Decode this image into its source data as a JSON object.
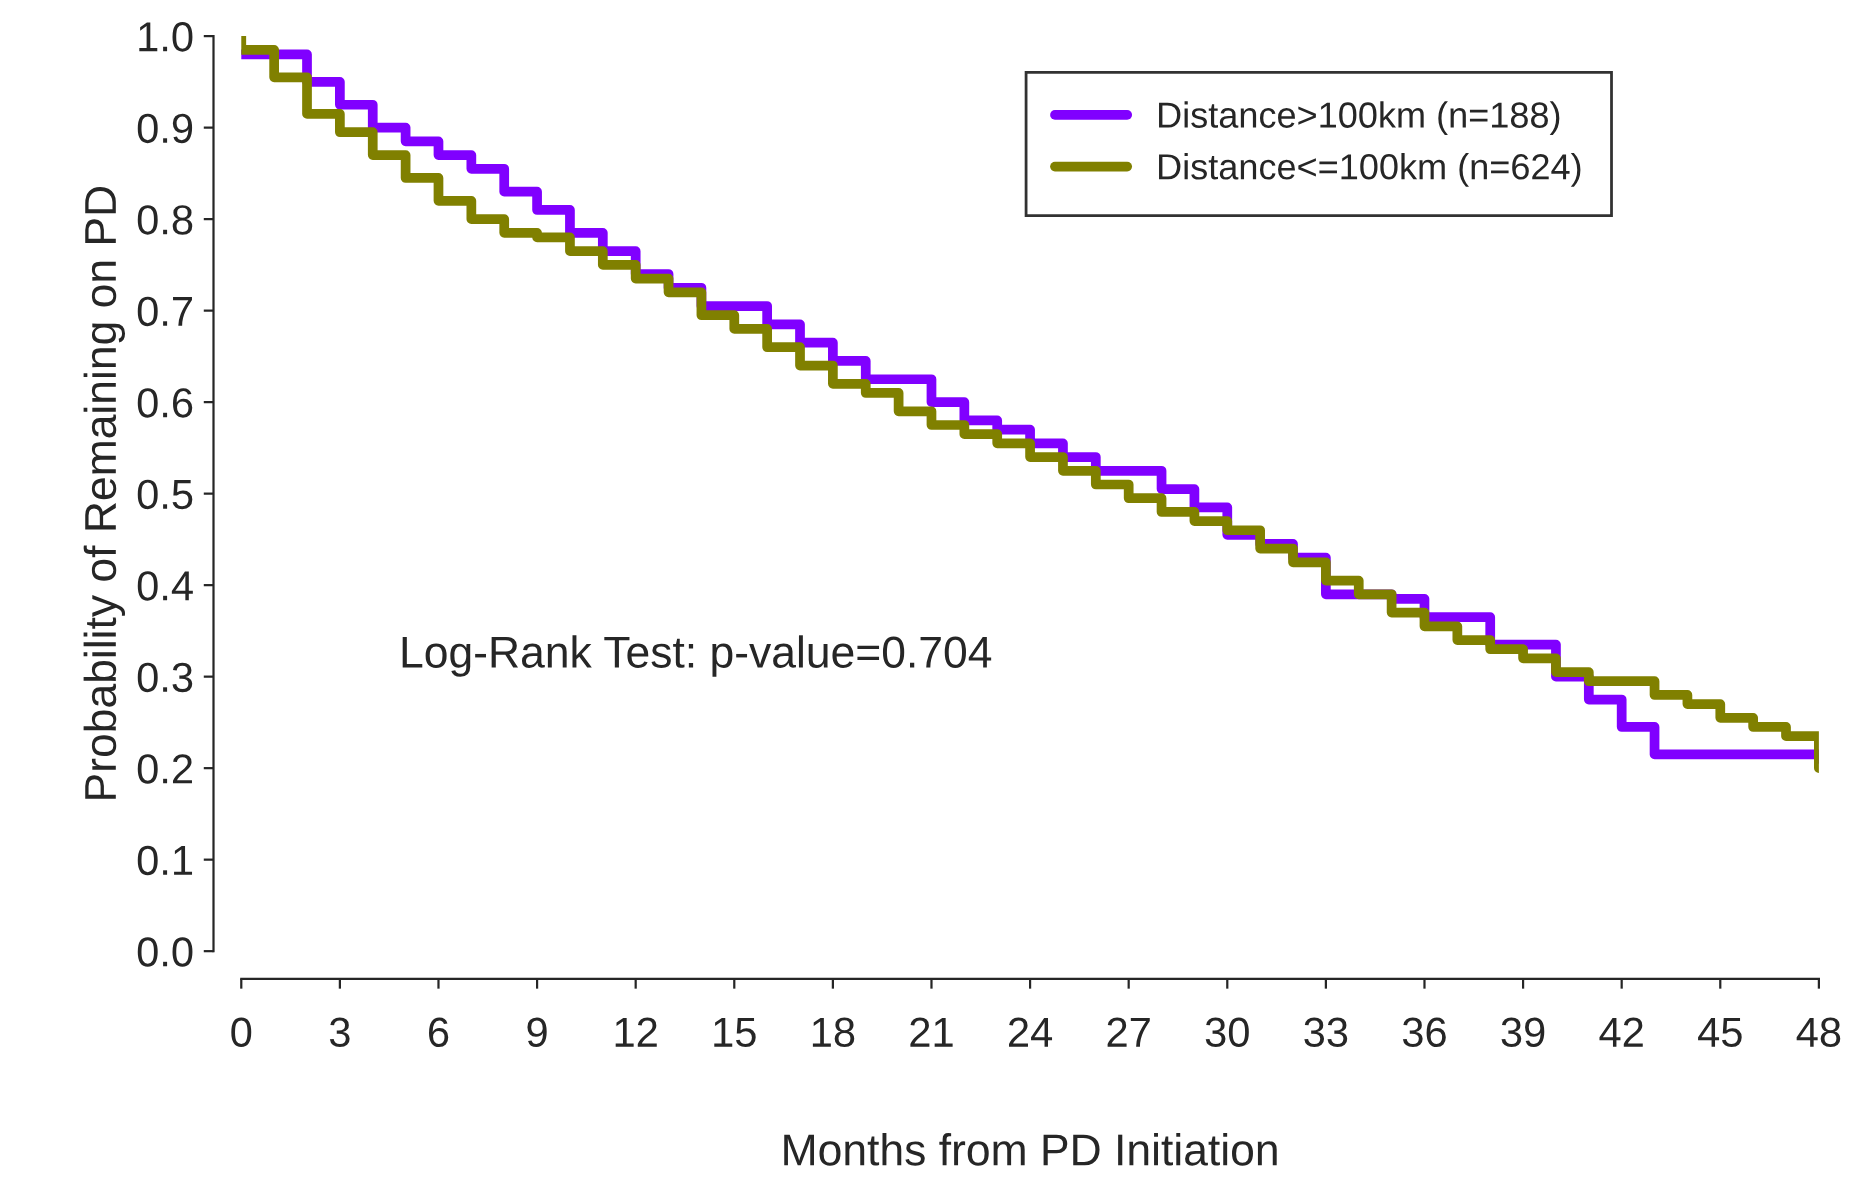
{
  "chart_data": {
    "type": "step",
    "xlabel": "Months from PD Initiation",
    "ylabel": "Probability of Remaining on PD",
    "xlim": [
      0,
      48
    ],
    "xticks": [
      0,
      3,
      6,
      9,
      12,
      15,
      18,
      21,
      24,
      27,
      30,
      33,
      36,
      39,
      42,
      45,
      48
    ],
    "ylim": [
      0,
      1
    ],
    "yticks": [
      {
        "value": 0,
        "label": "0.0"
      },
      0.1,
      0.2,
      0.3,
      0.4,
      0.5,
      0.6,
      0.7,
      0.8,
      0.9,
      {
        "value": 1,
        "label": "1.0"
      }
    ],
    "grid": false,
    "legend": "top right",
    "marker": "none",
    "line_style": "solid",
    "annotations": [
      "Log-Rank Test: p-value=0.704"
    ],
    "series": [
      {
        "name": "Distance>100km (n=188)",
        "color": "#8000ff",
        "x": [
          0,
          1,
          2,
          3,
          4,
          5,
          6,
          7,
          8,
          9,
          10,
          11,
          12,
          13,
          14,
          15,
          16,
          17,
          18,
          19,
          20,
          21,
          22,
          23,
          24,
          25,
          26,
          27,
          28,
          29,
          30,
          31,
          32,
          33,
          34,
          35,
          36,
          37,
          38,
          39,
          40,
          41,
          42,
          43,
          44,
          45,
          46,
          47,
          48
        ],
        "values": [
          0.98,
          0.98,
          0.95,
          0.925,
          0.9,
          0.885,
          0.87,
          0.855,
          0.83,
          0.81,
          0.785,
          0.765,
          0.74,
          0.725,
          0.705,
          0.705,
          0.685,
          0.665,
          0.645,
          0.625,
          0.625,
          0.6,
          0.58,
          0.57,
          0.555,
          0.54,
          0.525,
          0.525,
          0.505,
          0.485,
          0.455,
          0.445,
          0.43,
          0.39,
          0.39,
          0.385,
          0.365,
          0.365,
          0.335,
          0.335,
          0.3,
          0.275,
          0.245,
          0.215,
          0.215,
          0.215,
          0.215,
          0.215,
          0.21
        ]
      },
      {
        "name": "Distance<=100km (n=624)",
        "color": "#808000",
        "x": [
          0,
          0,
          1,
          2,
          3,
          4,
          5,
          6,
          7,
          8,
          9,
          10,
          11,
          12,
          13,
          14,
          15,
          16,
          17,
          18,
          19,
          20,
          21,
          22,
          23,
          24,
          25,
          26,
          27,
          28,
          29,
          30,
          31,
          32,
          33,
          34,
          35,
          36,
          37,
          38,
          39,
          40,
          41,
          42,
          43,
          44,
          45,
          46,
          47,
          48
        ],
        "values": [
          1.0,
          0.985,
          0.955,
          0.915,
          0.895,
          0.87,
          0.845,
          0.82,
          0.8,
          0.785,
          0.78,
          0.765,
          0.75,
          0.735,
          0.72,
          0.695,
          0.68,
          0.66,
          0.64,
          0.62,
          0.61,
          0.59,
          0.575,
          0.565,
          0.555,
          0.54,
          0.525,
          0.51,
          0.495,
          0.48,
          0.47,
          0.46,
          0.44,
          0.425,
          0.405,
          0.39,
          0.37,
          0.355,
          0.34,
          0.33,
          0.32,
          0.305,
          0.295,
          0.295,
          0.28,
          0.27,
          0.255,
          0.245,
          0.235,
          0.2
        ]
      }
    ]
  }
}
